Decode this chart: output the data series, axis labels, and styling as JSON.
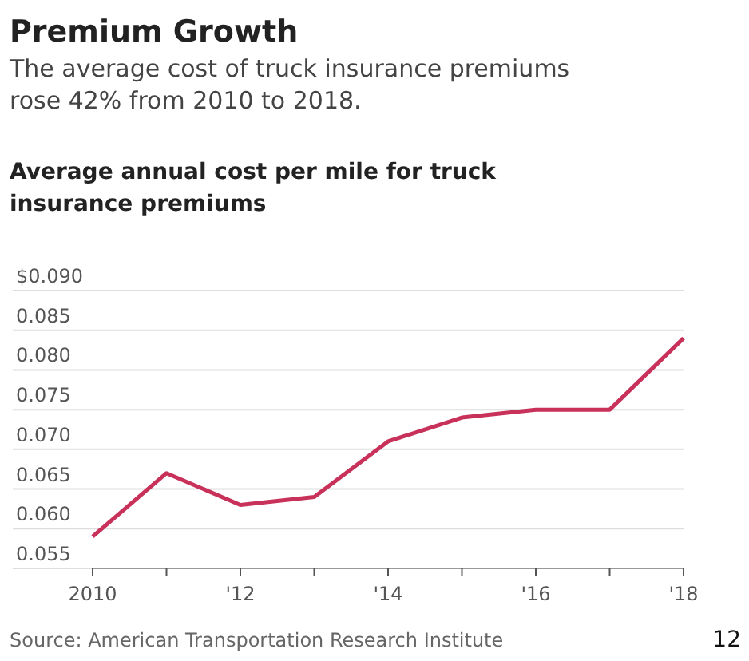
{
  "chart_data": {
    "type": "line",
    "title": "Premium Growth",
    "subtitle": "The average cost of truck insurance premiums rose 42% from 2010 to 2018.",
    "ylabel": "Average annual cost per mile for truck insurance premiums",
    "x": [
      2010,
      2011,
      2012,
      2013,
      2014,
      2015,
      2016,
      2017,
      2018
    ],
    "series": [
      {
        "color": "#c8325a",
        "values": [
          0.059,
          0.067,
          0.063,
          0.064,
          0.071,
          0.074,
          0.075,
          0.075,
          0.084
        ]
      }
    ],
    "xlim": [
      2010,
      2018
    ],
    "xticks": [
      2010,
      {
        "value": 2011,
        "label": null
      },
      {
        "value": 2012,
        "label": "'12"
      },
      {
        "value": 2013,
        "label": null
      },
      {
        "value": 2014,
        "label": "'14"
      },
      {
        "value": 2015,
        "label": null
      },
      {
        "value": 2016,
        "label": "'16"
      },
      {
        "value": 2017,
        "label": null
      },
      {
        "value": 2018,
        "label": "'18"
      }
    ],
    "ylim": [
      0.055,
      0.09
    ],
    "yticks": [
      0.055,
      {
        "value": 0.06,
        "label": "0.060"
      },
      0.065,
      {
        "value": 0.07,
        "label": "0.070"
      },
      0.075,
      {
        "value": 0.08,
        "label": "0.080"
      },
      0.085,
      {
        "value": 0.09,
        "label": "$0.090"
      }
    ],
    "grid": "y",
    "marker": "none",
    "line_style": "solid",
    "annotations": [
      "Source: American Transportation Research Institute",
      "12"
    ]
  }
}
